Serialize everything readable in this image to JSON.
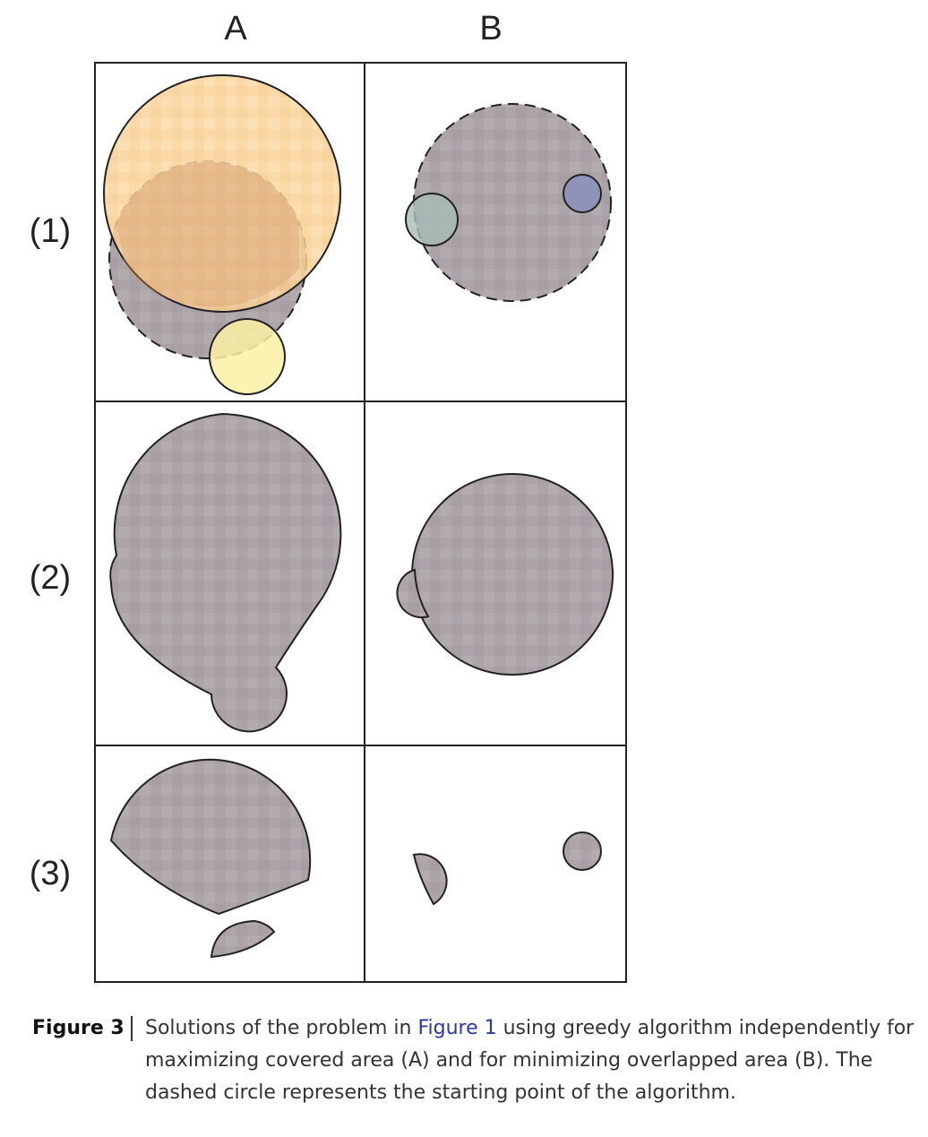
{
  "figure": {
    "column_labels": [
      "A",
      "B"
    ],
    "row_labels": [
      "(1)",
      "(2)",
      "(3)"
    ],
    "colors": {
      "orange_circle": "#fbd49a",
      "yellow_circle": "#fbf0a4",
      "grey_fill": "#a89fa3",
      "blue_circle": "#8a8fb5",
      "green_circle": "#9fb5ae",
      "stroke": "#222222"
    }
  },
  "caption": {
    "label": "Figure 3",
    "text_before_link": "Solutions of the problem in ",
    "link_text": "Figure 1",
    "text_after_link": " using greedy algorithm independently for maximizing covered area (A) and for minimizing overlapped area (B). The dashed circle represents the starting point of the algorithm."
  }
}
